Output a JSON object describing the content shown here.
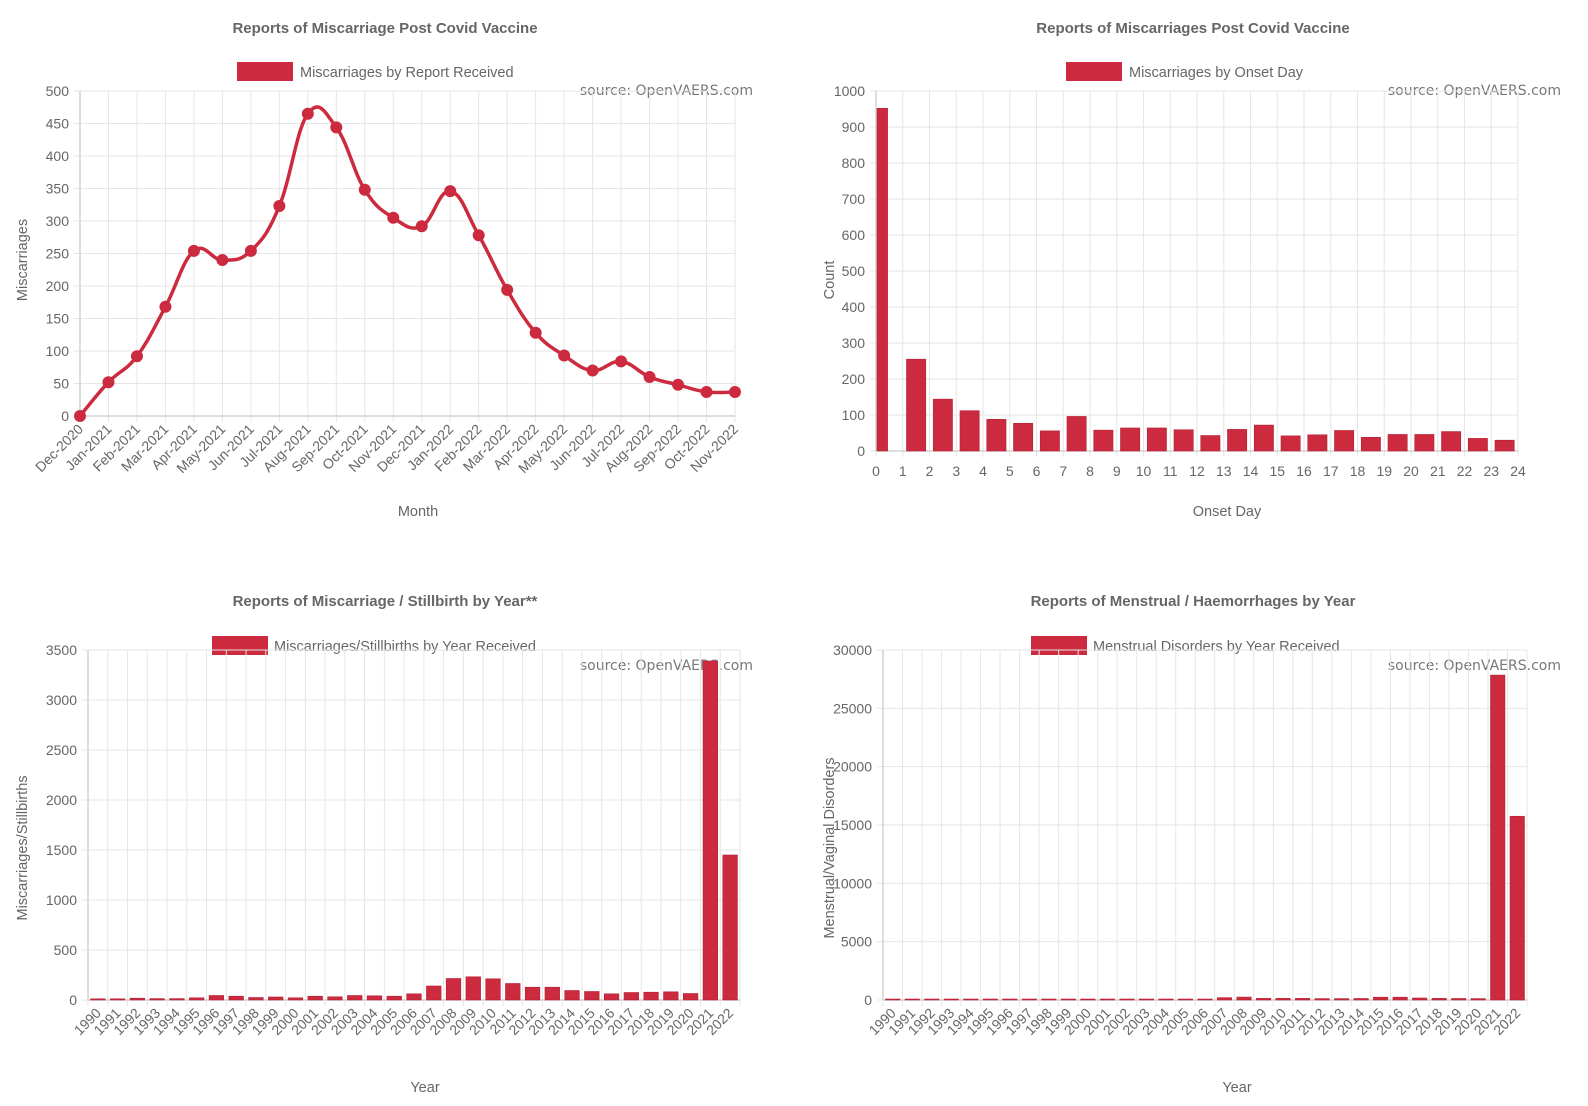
{
  "colors": {
    "series": "#cc2a3e",
    "text": "#666666",
    "grid": "#e6e6e6"
  },
  "chart_data": [
    {
      "type": "line",
      "title": "Reports of Miscarriage Post Covid Vaccine",
      "legend": "Miscarriages by Report Received",
      "legend_position": "top",
      "source": "source: OpenVAERS.com",
      "xlabel": "Month",
      "ylabel": "Miscarriages",
      "ylim": [
        0,
        500
      ],
      "yticks": [
        0,
        50,
        100,
        150,
        200,
        250,
        300,
        350,
        400,
        450,
        500
      ],
      "grid": true,
      "categories": [
        "Dec-2020",
        "Jan-2021",
        "Feb-2021",
        "Mar-2021",
        "Apr-2021",
        "May-2021",
        "Jun-2021",
        "Jul-2021",
        "Aug-2021",
        "Sep-2021",
        "Oct-2021",
        "Nov-2021",
        "Dec-2021",
        "Jan-2022",
        "Feb-2022",
        "Mar-2022",
        "Apr-2022",
        "May-2022",
        "Jun-2022",
        "Jul-2022",
        "Aug-2022",
        "Sep-2022",
        "Oct-2022",
        "Nov-2022"
      ],
      "values": [
        0,
        52,
        92,
        168,
        254,
        240,
        254,
        323,
        465,
        444,
        348,
        305,
        292,
        346,
        278,
        194,
        128,
        93,
        70,
        84,
        60,
        48,
        37,
        37
      ]
    },
    {
      "type": "bar",
      "title": "Reports of Miscarriages Post Covid Vaccine",
      "legend": "Miscarriages by Onset Day",
      "legend_position": "top",
      "source": "source: OpenVAERS.com",
      "xlabel": "Onset Day",
      "ylabel": "Count",
      "ylim": [
        0,
        1000
      ],
      "yticks": [
        0,
        100,
        200,
        300,
        400,
        500,
        600,
        700,
        800,
        900,
        1000
      ],
      "grid": true,
      "categories": [
        "0",
        "1",
        "2",
        "3",
        "4",
        "5",
        "6",
        "7",
        "8",
        "9",
        "10",
        "11",
        "12",
        "13",
        "14",
        "15",
        "16",
        "17",
        "18",
        "19",
        "20",
        "21",
        "22",
        "23",
        "24"
      ],
      "values": [
        952,
        255,
        144,
        112,
        88,
        77,
        56,
        96,
        58,
        64,
        64,
        59,
        43,
        60,
        72,
        42,
        45,
        57,
        38,
        46,
        46,
        54,
        35,
        30,
        28
      ]
    },
    {
      "type": "bar",
      "title": "Reports of Miscarriage / Stillbirth by Year**",
      "legend": "Miscarriages/Stillbirths by Year Received",
      "legend_position": "top",
      "source": "source: OpenVAERS.com",
      "xlabel": "Year",
      "ylabel": "Miscarriages/Stillbirths",
      "ylim": [
        0,
        3500
      ],
      "yticks": [
        0,
        500,
        1000,
        1500,
        2000,
        2500,
        3000,
        3500
      ],
      "grid": true,
      "categories": [
        "1990",
        "1991",
        "1992",
        "1993",
        "1994",
        "1995",
        "1996",
        "1997",
        "1998",
        "1999",
        "2000",
        "2001",
        "2002",
        "2003",
        "2004",
        "2005",
        "2006",
        "2007",
        "2008",
        "2009",
        "2010",
        "2011",
        "2012",
        "2013",
        "2014",
        "2015",
        "2016",
        "2017",
        "2018",
        "2019",
        "2020",
        "2021",
        "2022"
      ],
      "values": [
        12,
        12,
        18,
        14,
        14,
        22,
        45,
        38,
        25,
        30,
        22,
        38,
        32,
        45,
        42,
        38,
        62,
        140,
        215,
        232,
        212,
        165,
        128,
        128,
        95,
        85,
        62,
        75,
        78,
        82,
        65,
        3390,
        1450
      ]
    },
    {
      "type": "bar",
      "title": "Reports of Menstrual / Haemorrhages by Year",
      "legend": "Menstrual Disorders by Year Received",
      "legend_position": "top",
      "source": "source: OpenVAERS.com",
      "xlabel": "Year",
      "ylabel": "Menstrual/Vaginal Disorders",
      "ylim": [
        0,
        30000
      ],
      "yticks": [
        0,
        5000,
        10000,
        15000,
        20000,
        25000,
        30000
      ],
      "grid": true,
      "categories": [
        "1990",
        "1991",
        "1992",
        "1993",
        "1994",
        "1995",
        "1996",
        "1997",
        "1998",
        "1999",
        "2000",
        "2001",
        "2002",
        "2003",
        "2004",
        "2005",
        "2006",
        "2007",
        "2008",
        "2009",
        "2010",
        "2011",
        "2012",
        "2013",
        "2014",
        "2015",
        "2016",
        "2017",
        "2018",
        "2019",
        "2020",
        "2021",
        "2022"
      ],
      "values": [
        20,
        20,
        25,
        30,
        25,
        25,
        30,
        25,
        30,
        30,
        40,
        30,
        30,
        30,
        30,
        35,
        50,
        200,
        250,
        140,
        140,
        140,
        120,
        120,
        130,
        240,
        240,
        170,
        140,
        130,
        120,
        27850,
        15750
      ]
    }
  ]
}
